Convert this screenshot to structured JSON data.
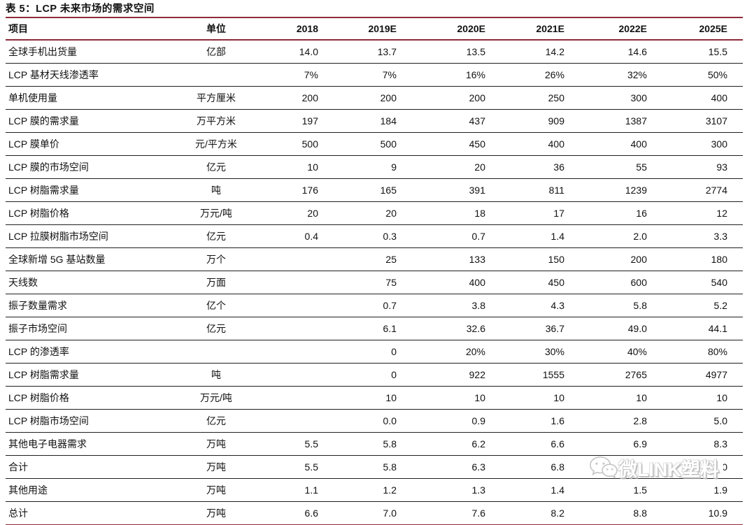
{
  "page": {
    "title": "表 5：LCP 未来市场的需求空间"
  },
  "colors": {
    "accent_line": "#8e2b38",
    "row_line": "#1f1f1f",
    "text": "#111111",
    "watermark": "#c9c9c9"
  },
  "table": {
    "columns": [
      {
        "label": "项目",
        "align": "left"
      },
      {
        "label": "单位",
        "align": "center"
      },
      {
        "label": "2018",
        "align": "right"
      },
      {
        "label": "2019E",
        "align": "right"
      },
      {
        "label": "2020E",
        "align": "right"
      },
      {
        "label": "2021E",
        "align": "right"
      },
      {
        "label": "2022E",
        "align": "right"
      },
      {
        "label": "2025E",
        "align": "right"
      }
    ],
    "rows": [
      {
        "cells": [
          "全球手机出货量",
          "亿部",
          "14.0",
          "13.7",
          "13.5",
          "14.2",
          "14.6",
          "15.5"
        ]
      },
      {
        "cells": [
          "LCP 基材天线渗透率",
          "",
          "7%",
          "7%",
          "16%",
          "26%",
          "32%",
          "50%"
        ]
      },
      {
        "cells": [
          "单机使用量",
          "平方厘米",
          "200",
          "200",
          "200",
          "250",
          "300",
          "400"
        ]
      },
      {
        "cells": [
          "LCP 膜的需求量",
          "万平方米",
          "197",
          "184",
          "437",
          "909",
          "1387",
          "3107"
        ]
      },
      {
        "cells": [
          "LCP 膜单价",
          "元/平方米",
          "500",
          "500",
          "450",
          "400",
          "400",
          "300"
        ]
      },
      {
        "cells": [
          "LCP 膜的市场空间",
          "亿元",
          "10",
          "9",
          "20",
          "36",
          "55",
          "93"
        ]
      },
      {
        "cells": [
          "LCP 树脂需求量",
          "吨",
          "176",
          "165",
          "391",
          "811",
          "1239",
          "2774"
        ]
      },
      {
        "cells": [
          "LCP 树脂价格",
          "万元/吨",
          "20",
          "20",
          "18",
          "17",
          "16",
          "12"
        ]
      },
      {
        "cells": [
          "LCP 拉膜树脂市场空间",
          "亿元",
          "0.4",
          "0.3",
          "0.7",
          "1.4",
          "2.0",
          "3.3"
        ]
      },
      {
        "cells": [
          "全球新增 5G 基站数量",
          "万个",
          "",
          "25",
          "133",
          "150",
          "200",
          "180"
        ]
      },
      {
        "cells": [
          "天线数",
          "万面",
          "",
          "75",
          "400",
          "450",
          "600",
          "540"
        ]
      },
      {
        "cells": [
          "振子数量需求",
          "亿个",
          "",
          "0.7",
          "3.8",
          "4.3",
          "5.8",
          "5.2"
        ]
      },
      {
        "cells": [
          "振子市场空间",
          "亿元",
          "",
          "6.1",
          "32.6",
          "36.7",
          "49.0",
          "44.1"
        ]
      },
      {
        "cells": [
          "LCP 的渗透率",
          "",
          "",
          "0",
          "20%",
          "30%",
          "40%",
          "80%"
        ]
      },
      {
        "cells": [
          "LCP 树脂需求量",
          "吨",
          "",
          "0",
          "922",
          "1555",
          "2765",
          "4977"
        ]
      },
      {
        "cells": [
          "LCP 树脂价格",
          "万元/吨",
          "",
          "10",
          "10",
          "10",
          "10",
          "10"
        ]
      },
      {
        "cells": [
          "LCP 树脂市场空间",
          "亿元",
          "",
          "0.0",
          "0.9",
          "1.6",
          "2.8",
          "5.0"
        ]
      },
      {
        "cells": [
          "其他电子电器需求",
          "万吨",
          "5.5",
          "5.8",
          "6.2",
          "6.6",
          "6.9",
          "8.3"
        ]
      },
      {
        "cells": [
          "合计",
          "万吨",
          "5.5",
          "5.8",
          "6.3",
          "6.8",
          "7.3",
          "9.0"
        ]
      },
      {
        "cells": [
          "其他用途",
          "万吨",
          "1.1",
          "1.2",
          "1.3",
          "1.4",
          "1.5",
          "1.9"
        ]
      },
      {
        "cells": [
          "总计",
          "万吨",
          "6.6",
          "7.0",
          "7.6",
          "8.2",
          "8.8",
          "10.9"
        ]
      }
    ]
  },
  "watermark": {
    "icon": "wechat-icon",
    "text": "微LINK塑料"
  }
}
